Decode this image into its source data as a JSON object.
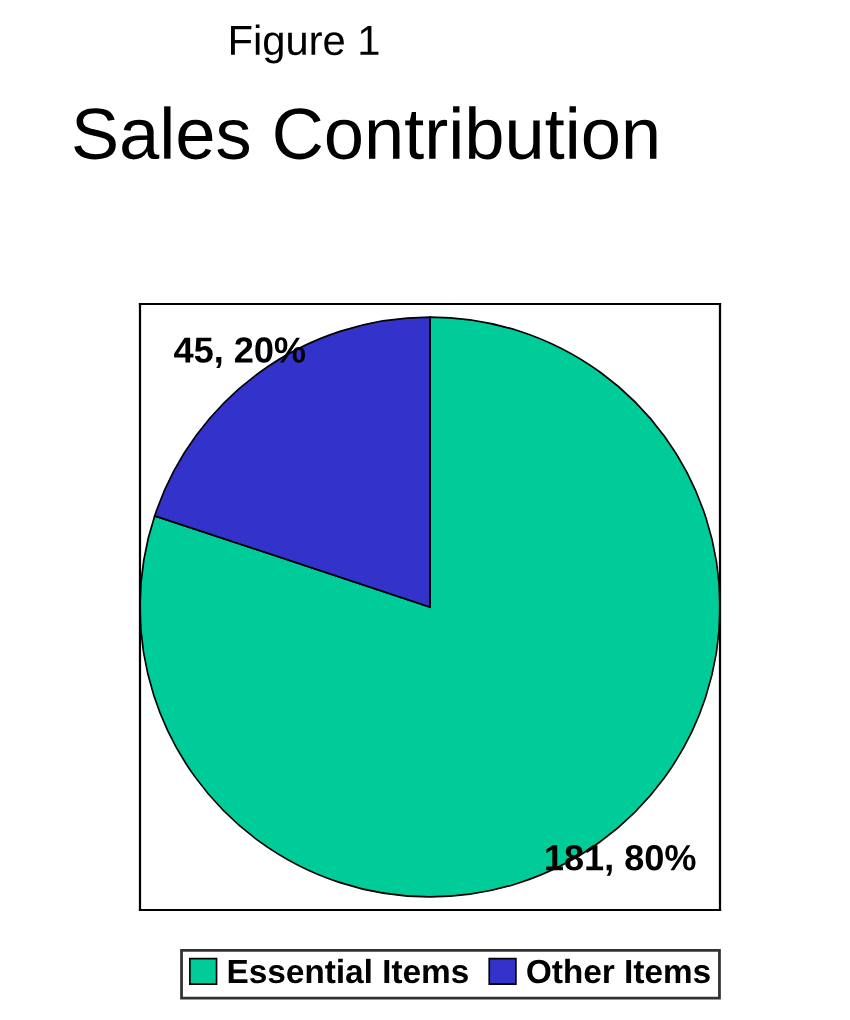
{
  "chart_data": {
    "type": "pie",
    "subtitle": "Figure 1",
    "title": "Sales Contribution",
    "categories": [
      "Essential Items",
      "Other Items"
    ],
    "values": [
      181,
      45
    ],
    "colors": [
      "#00cc99",
      "#3333cc"
    ],
    "value_labels": [
      "181, 80%",
      "45, 20%"
    ],
    "legend": "bottom"
  }
}
